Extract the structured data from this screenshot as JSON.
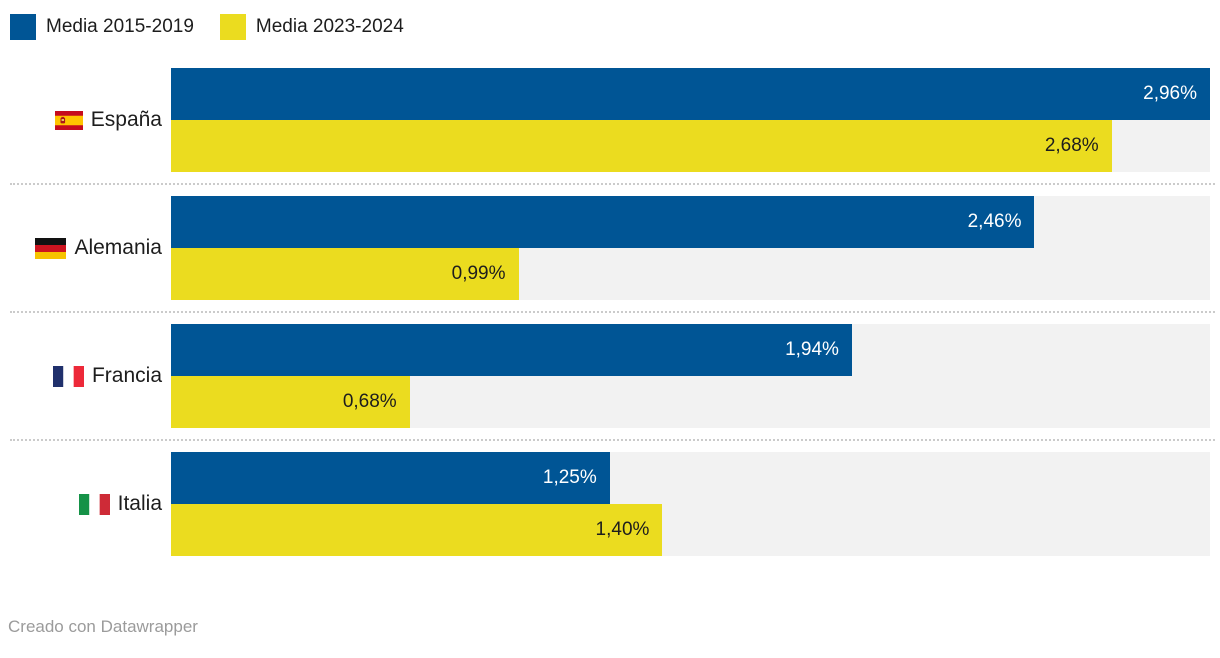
{
  "legend": {
    "items": [
      {
        "label": "Media 2015-2019",
        "color": "#005595"
      },
      {
        "label": "Media 2023-2024",
        "color": "#ebdc1f"
      }
    ]
  },
  "chart_data": {
    "type": "bar",
    "orientation": "horizontal",
    "categories": [
      "España",
      "Alemania",
      "Francia",
      "Italia"
    ],
    "category_icons": [
      "spain-flag-icon",
      "germany-flag-icon",
      "france-flag-icon",
      "italy-flag-icon"
    ],
    "series": [
      {
        "name": "Media 2015-2019",
        "color": "#005595",
        "text_color": "#ffffff",
        "values": [
          2.96,
          2.46,
          1.94,
          1.25
        ],
        "value_labels": [
          "2,96%",
          "2,46%",
          "1,94%",
          "1,25%"
        ]
      },
      {
        "name": "Media 2023-2024",
        "color": "#ebdc1f",
        "text_color": "#1d1d1d",
        "values": [
          2.68,
          0.99,
          0.68,
          1.4
        ],
        "value_labels": [
          "2,68%",
          "0,99%",
          "0,68%",
          "1,40%"
        ]
      }
    ],
    "xlim": [
      0,
      2.96
    ],
    "track_color": "#f2f2f2",
    "grid": false,
    "legend_position": "top-left",
    "value_format": "percent-comma-decimal"
  },
  "footer": {
    "credit": "Creado con Datawrapper"
  }
}
